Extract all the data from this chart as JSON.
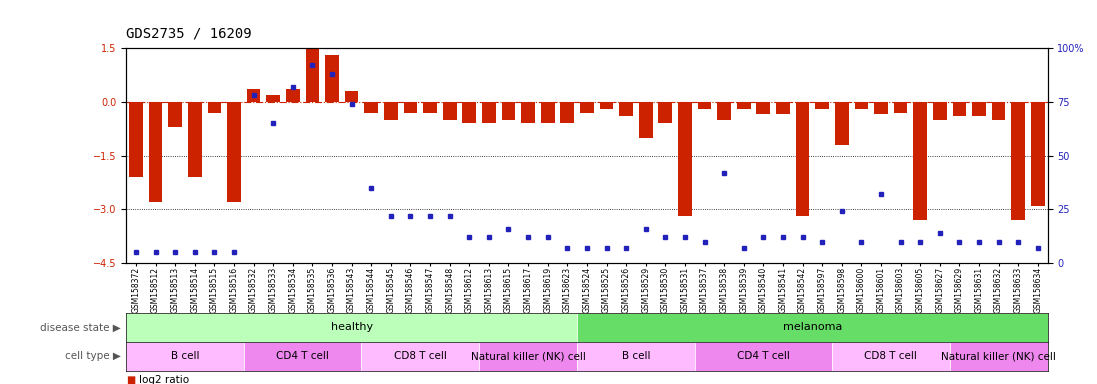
{
  "title": "GDS2735 / 16209",
  "samples": [
    "GSM158372",
    "GSM158512",
    "GSM158513",
    "GSM158514",
    "GSM158515",
    "GSM158516",
    "GSM158532",
    "GSM158533",
    "GSM158534",
    "GSM158535",
    "GSM158536",
    "GSM158543",
    "GSM158544",
    "GSM158545",
    "GSM158546",
    "GSM158547",
    "GSM158548",
    "GSM158612",
    "GSM158613",
    "GSM158615",
    "GSM158617",
    "GSM158619",
    "GSM158623",
    "GSM158524",
    "GSM158525",
    "GSM158526",
    "GSM158529",
    "GSM158530",
    "GSM158531",
    "GSM158537",
    "GSM158538",
    "GSM158539",
    "GSM158540",
    "GSM158541",
    "GSM158542",
    "GSM158597",
    "GSM158598",
    "GSM158600",
    "GSM158601",
    "GSM158603",
    "GSM158605",
    "GSM158627",
    "GSM158629",
    "GSM158631",
    "GSM158632",
    "GSM158633",
    "GSM158634"
  ],
  "log2_ratio": [
    -2.1,
    -2.8,
    -0.7,
    -2.1,
    -0.3,
    -2.8,
    0.35,
    0.2,
    0.35,
    1.5,
    1.3,
    0.3,
    -0.3,
    -0.5,
    -0.3,
    -0.3,
    -0.5,
    -0.6,
    -0.6,
    -0.5,
    -0.6,
    -0.6,
    -0.6,
    -0.3,
    -0.2,
    -0.4,
    -1.0,
    -0.6,
    -3.2,
    -0.2,
    -0.5,
    -0.2,
    -0.35,
    -0.35,
    -3.2,
    -0.2,
    -1.2,
    -0.2,
    -0.35,
    -0.3,
    -3.3,
    -0.5,
    -0.4,
    -0.4,
    -0.5,
    -3.3,
    -2.9
  ],
  "percentile": [
    5,
    5,
    5,
    5,
    5,
    5,
    78,
    65,
    82,
    92,
    88,
    74,
    35,
    22,
    22,
    22,
    22,
    12,
    12,
    16,
    12,
    12,
    7,
    7,
    7,
    7,
    16,
    12,
    12,
    10,
    42,
    7,
    12,
    12,
    12,
    10,
    24,
    10,
    32,
    10,
    10,
    14,
    10,
    10,
    10,
    10,
    7
  ],
  "bar_color": "#cc2200",
  "dot_color": "#2222bb",
  "ylim_left": [
    -4.5,
    1.5
  ],
  "ylim_right": [
    0,
    100
  ],
  "yticks_left": [
    1.5,
    0.0,
    -1.5,
    -3.0,
    -4.5
  ],
  "yticks_right": [
    100,
    75,
    50,
    25,
    0
  ],
  "disease_state_groups": [
    {
      "label": "healthy",
      "start": 0,
      "end": 22,
      "color": "#bbffbb"
    },
    {
      "label": "melanoma",
      "start": 23,
      "end": 46,
      "color": "#66dd66"
    }
  ],
  "cell_type_groups": [
    {
      "label": "B cell",
      "start": 0,
      "end": 5,
      "color": "#ffbbff"
    },
    {
      "label": "CD4 T cell",
      "start": 6,
      "end": 11,
      "color": "#ee88ee"
    },
    {
      "label": "CD8 T cell",
      "start": 12,
      "end": 17,
      "color": "#ffbbff"
    },
    {
      "label": "Natural killer (NK) cell",
      "start": 18,
      "end": 22,
      "color": "#ee88ee"
    },
    {
      "label": "B cell",
      "start": 23,
      "end": 28,
      "color": "#ffbbff"
    },
    {
      "label": "CD4 T cell",
      "start": 29,
      "end": 35,
      "color": "#ee88ee"
    },
    {
      "label": "CD8 T cell",
      "start": 36,
      "end": 41,
      "color": "#ffbbff"
    },
    {
      "label": "Natural killer (NK) cell",
      "start": 42,
      "end": 46,
      "color": "#ee88ee"
    }
  ],
  "background_color": "#ffffff",
  "zero_line_color": "#cc2200",
  "title_fontsize": 10,
  "tick_fontsize": 5.5,
  "annot_fontsize": 8,
  "legend_fontsize": 7.5
}
